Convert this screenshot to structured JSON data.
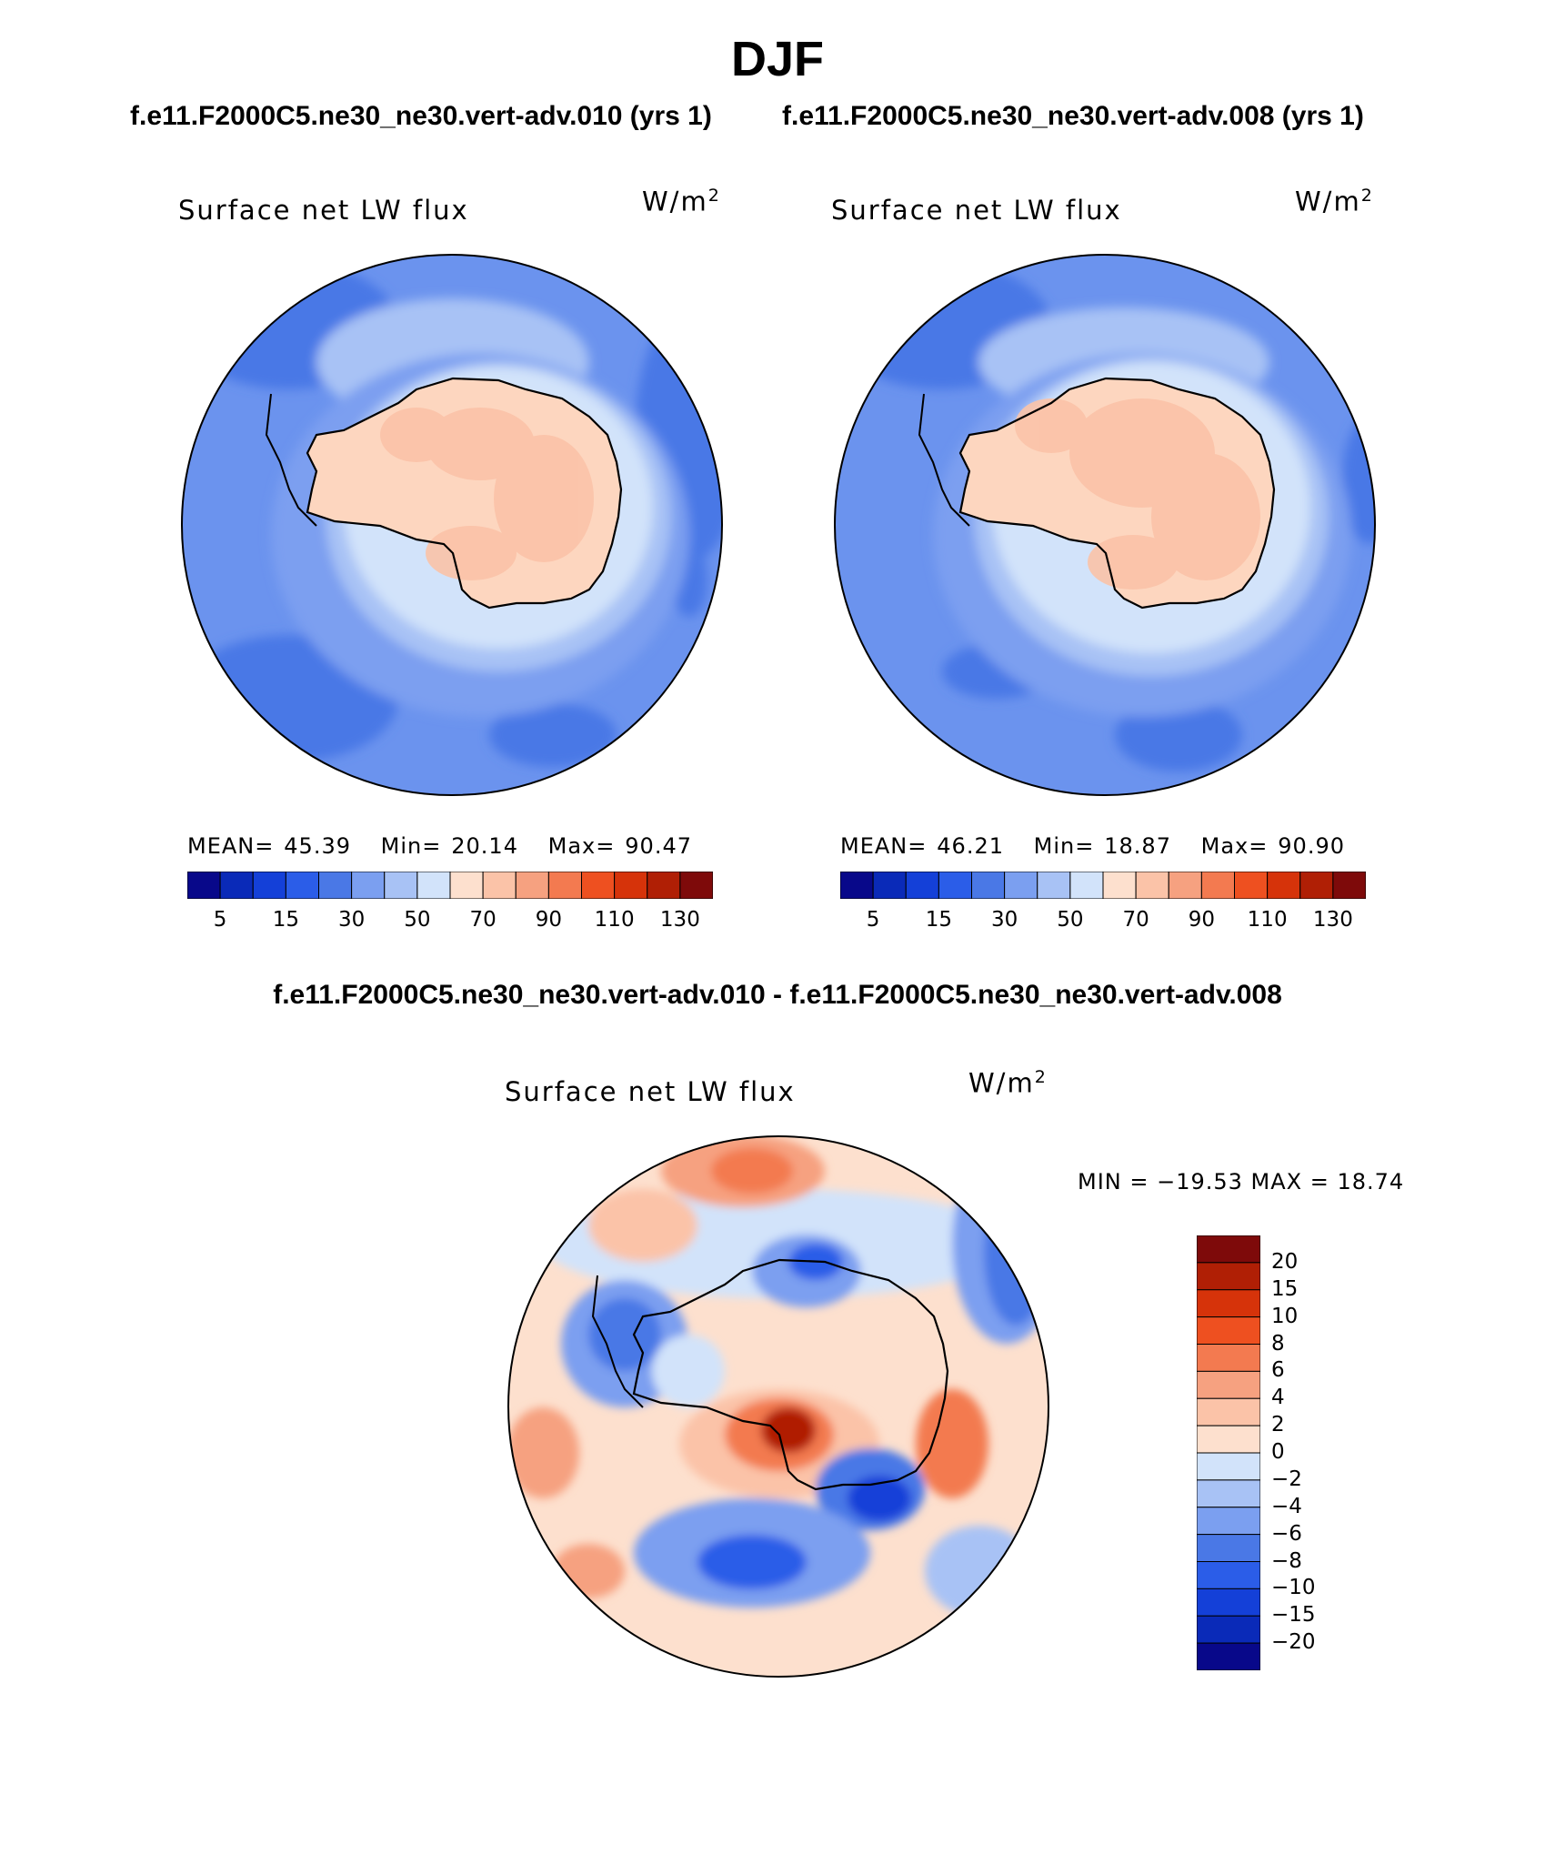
{
  "header": {
    "season": "DJF",
    "case_a_title": "f.e11.F2000C5.ne30_ne30.vert-adv.010 (yrs 1)",
    "case_b_title": "f.e11.F2000C5.ne30_ne30.vert-adv.008 (yrs 1)",
    "diff_title": "f.e11.F2000C5.ne30_ne30.vert-adv.010 - f.e11.F2000C5.ne30_ne30.vert-adv.008"
  },
  "panels": [
    {
      "id": "case-a",
      "label": "Surface net LW flux",
      "units_base": "W/m",
      "units_exp": "2",
      "mean_label": "MEAN=",
      "mean_value": "45.39",
      "min_label": "Min=",
      "min_value": "20.14",
      "max_label": "Max=",
      "max_value": "90.47"
    },
    {
      "id": "case-b",
      "label": "Surface net LW flux",
      "units_base": "W/m",
      "units_exp": "2",
      "mean_label": "MEAN=",
      "mean_value": "46.21",
      "min_label": "Min=",
      "min_value": "18.87",
      "max_label": "Max=",
      "max_value": "90.90"
    },
    {
      "id": "difference",
      "label": "Surface net LW flux",
      "units_base": "W/m",
      "units_exp": "2",
      "minmax_text": "MIN = −19.53 MAX =   18.74"
    }
  ],
  "colorbars": {
    "absolute": {
      "tick_labels": [
        "5",
        "15",
        "30",
        "50",
        "70",
        "90",
        "110",
        "130"
      ],
      "colors": [
        "#08088a",
        "#0a2ab8",
        "#1440d8",
        "#2b5de8",
        "#4a78e6",
        "#7b9ff0",
        "#a8c2f5",
        "#d2e3fa",
        "#fde0ce",
        "#fbc3a8",
        "#f6a180",
        "#f37a50",
        "#ee5020",
        "#d6330a",
        "#b01f05",
        "#7e0a0a"
      ]
    },
    "difference": {
      "tick_labels": [
        "20",
        "15",
        "10",
        "8",
        "6",
        "4",
        "2",
        "0",
        "−2",
        "−4",
        "−6",
        "−8",
        "−10",
        "−15",
        "−20"
      ],
      "colors_top_to_bottom": [
        "#7e0a0a",
        "#b01f05",
        "#d6330a",
        "#ee5020",
        "#f37a50",
        "#f6a180",
        "#fbc3a8",
        "#fde0ce",
        "#d2e3fa",
        "#a8c2f5",
        "#7b9ff0",
        "#4a78e6",
        "#2b5de8",
        "#1440d8",
        "#0a2ab8",
        "#08088a"
      ]
    }
  },
  "maps": {
    "ocean_color_a": "#6b93ee",
    "continent_color": "#fdd6bf",
    "coast_color": "#000000"
  }
}
